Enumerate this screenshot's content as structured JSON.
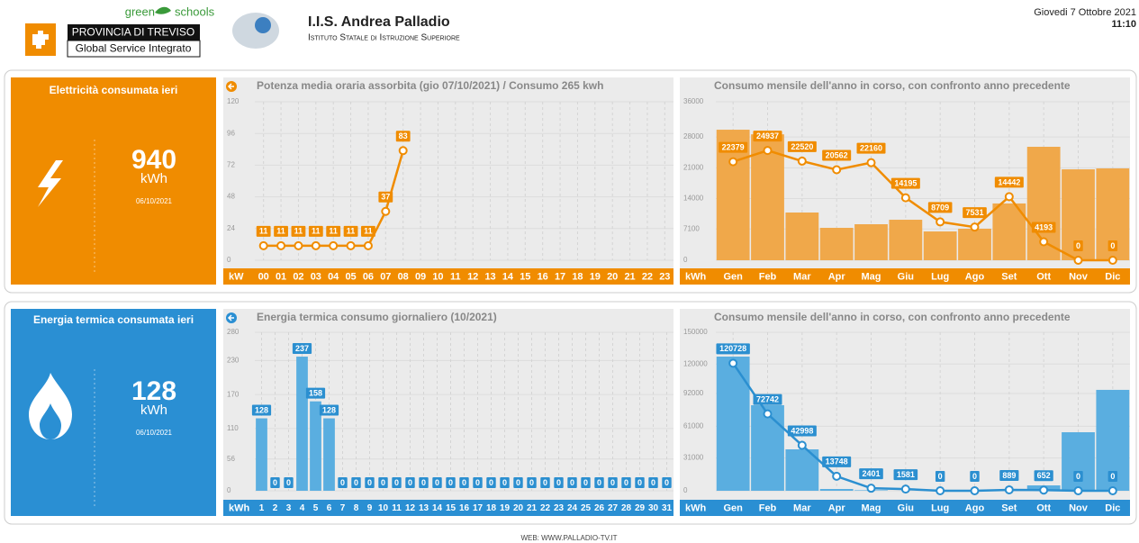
{
  "header": {
    "logo_green": "green",
    "logo_schools": "schools",
    "province": "PROVINCIA DI TREVISO",
    "service": "Global Service Integrato",
    "school": "I.I.S. Andrea Palladio",
    "school_subtitle": "Istituto Statale di Istruzione Superiore",
    "date": "Giovedi 7 Ottobre 2021",
    "time": "11:10"
  },
  "panels": [
    {
      "title": "Elettricità consumata ieri",
      "value": 940,
      "unit": "kWh",
      "date": "06/10/2021"
    },
    {
      "title": "Energia termica consumata ieri",
      "value": 128,
      "unit": "kWh",
      "date": "06/10/2021"
    }
  ],
  "chart_data": [
    {
      "type": "line",
      "title": "Potenza media oraria assorbita (gio 07/10/2021) / Consumo 265 kwh",
      "unit": "kW",
      "color": "#f08c00",
      "grid": true,
      "categories": [
        "00",
        "01",
        "02",
        "03",
        "04",
        "05",
        "06",
        "07",
        "08",
        "09",
        "10",
        "11",
        "12",
        "13",
        "14",
        "15",
        "16",
        "17",
        "18",
        "19",
        "20",
        "21",
        "22",
        "23"
      ],
      "series": [
        {
          "type": "line",
          "color": "#f08c00",
          "values": [
            11,
            11,
            11,
            11,
            11,
            11,
            11,
            37,
            83,
            null,
            null,
            null,
            null,
            null,
            null,
            null,
            null,
            null,
            null,
            null,
            null,
            null,
            null,
            null
          ]
        }
      ],
      "ylim": [
        0,
        120
      ],
      "yticks": [
        0,
        24,
        48,
        72,
        96,
        120
      ]
    },
    {
      "type": "combo",
      "title": "Consumo mensile dell'anno in corso, con confronto anno precedente",
      "unit": "kWh",
      "color": "#f08c00",
      "grid": true,
      "categories": [
        "Gen",
        "Feb",
        "Mar",
        "Apr",
        "Mag",
        "Giu",
        "Lug",
        "Ago",
        "Set",
        "Ott",
        "Nov",
        "Dic"
      ],
      "series": [
        {
          "type": "bar",
          "color": "#f0a84a",
          "values": [
            29650,
            28600,
            10840,
            7360,
            8180,
            9200,
            6540,
            7160,
            12900,
            25770,
            20650,
            20860
          ]
        },
        {
          "type": "line",
          "color": "#f08c00",
          "labels": true,
          "values": [
            22379,
            24937,
            22520,
            20562,
            22160,
            14195,
            8709,
            7531,
            14442,
            4193,
            0,
            0
          ]
        }
      ],
      "ylim": [
        0,
        36000
      ],
      "yticks": [
        0,
        7100,
        14000,
        21000,
        28000,
        36000
      ]
    },
    {
      "type": "bar",
      "title": "Energia termica consumo giornaliero (10/2021)",
      "unit": "kWh",
      "color": "#2a8fd3",
      "grid": true,
      "categories": [
        "1",
        "2",
        "3",
        "4",
        "5",
        "6",
        "7",
        "8",
        "9",
        "10",
        "11",
        "12",
        "13",
        "14",
        "15",
        "16",
        "17",
        "18",
        "19",
        "20",
        "21",
        "22",
        "23",
        "24",
        "25",
        "26",
        "27",
        "28",
        "29",
        "30",
        "31"
      ],
      "series": [
        {
          "type": "bar",
          "color": "#5aaee0",
          "labels": true,
          "values": [
            128,
            0,
            0,
            237,
            158,
            128,
            0,
            0,
            0,
            0,
            0,
            0,
            0,
            0,
            0,
            0,
            0,
            0,
            0,
            0,
            0,
            0,
            0,
            0,
            0,
            0,
            0,
            0,
            0,
            0,
            0
          ]
        }
      ],
      "ylim": [
        0,
        280
      ],
      "yticks": [
        0,
        56,
        110,
        170,
        230,
        280
      ]
    },
    {
      "type": "combo",
      "title": "Consumo mensile dell'anno in corso, con confronto anno precedente",
      "unit": "kWh",
      "color": "#2a8fd3",
      "grid": true,
      "categories": [
        "Gen",
        "Feb",
        "Mar",
        "Apr",
        "Mag",
        "Giu",
        "Lug",
        "Ago",
        "Set",
        "Ott",
        "Nov",
        "Dic"
      ],
      "series": [
        {
          "type": "bar",
          "color": "#5aaee0",
          "values": [
            127000,
            81000,
            39200,
            1700,
            500,
            0,
            0,
            0,
            800,
            5100,
            55400,
            95500
          ]
        },
        {
          "type": "line",
          "color": "#2b8fd0",
          "labels": true,
          "values": [
            120728,
            72742,
            42998,
            13748,
            2401,
            1581,
            0,
            0,
            889,
            652,
            0,
            0
          ]
        }
      ],
      "ylim": [
        0,
        150000
      ],
      "yticks": [
        0,
        31000,
        61000,
        92000,
        120000,
        150000
      ]
    }
  ],
  "footer": "WEB: WWW.PALLADIO-TV.IT"
}
